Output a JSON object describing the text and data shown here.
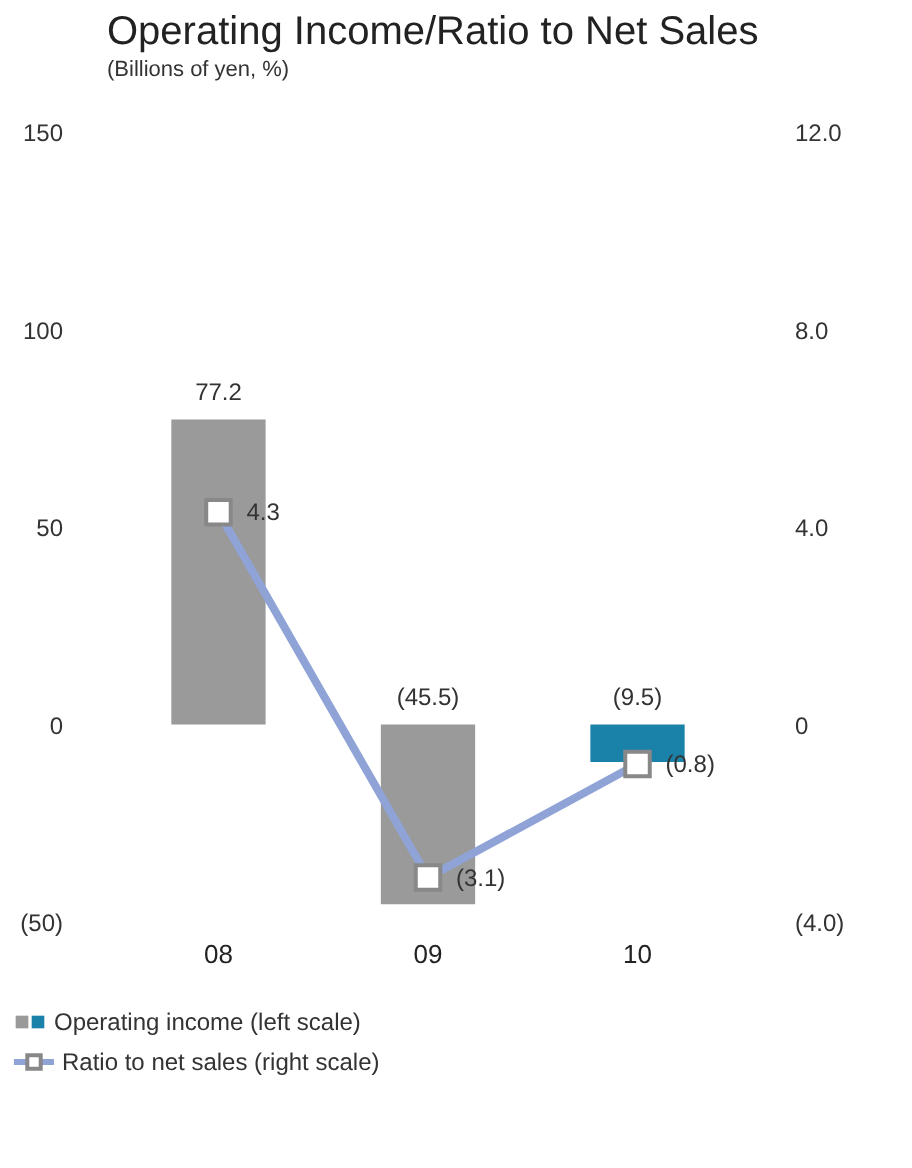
{
  "chart_data": {
    "type": "bar",
    "title": "Operating Income/Ratio to Net Sales",
    "subtitle": "(Billions of yen, %)",
    "categories": [
      "08",
      "09",
      "10"
    ],
    "series": [
      {
        "name": "Operating income (left scale)",
        "colors": [
          "#9a9a9a",
          "#9a9a9a",
          "#1a82a8"
        ],
        "values": [
          77.2,
          -45.5,
          -9.5
        ],
        "value_labels": [
          "77.2",
          "(45.5)",
          "(9.5)"
        ]
      },
      {
        "name": "Ratio to net sales (right scale)",
        "type": "line",
        "axis": "y2",
        "color": "#8fa3d6",
        "values": [
          4.3,
          -3.1,
          -0.8
        ],
        "value_labels": [
          "4.3",
          "(3.1)",
          "(0.8)"
        ]
      }
    ],
    "ylim": [
      -50,
      150
    ],
    "yticks": [
      {
        "value": -50,
        "label": "(50)"
      },
      0,
      50,
      100,
      150
    ],
    "y2lim": [
      -4,
      12
    ],
    "y2ticks": [
      {
        "value": -4,
        "label": "(4.0)"
      },
      0,
      {
        "value": 4,
        "label": "4.0"
      },
      {
        "value": 8,
        "label": "8.0"
      },
      {
        "value": 12,
        "label": "12.0"
      }
    ],
    "marker": "square",
    "grid": false,
    "legend": "bottom"
  }
}
